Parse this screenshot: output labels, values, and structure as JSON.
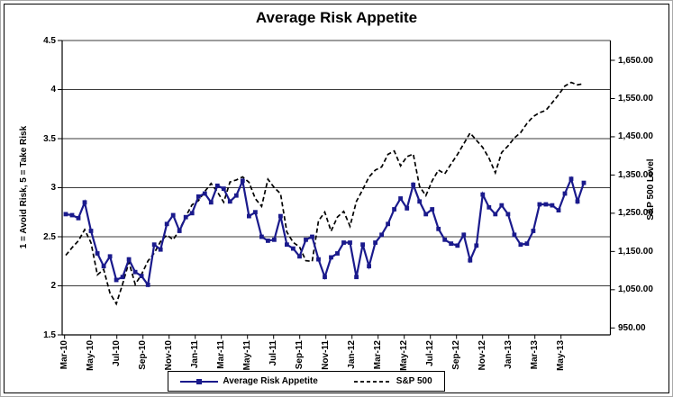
{
  "chart": {
    "title": "Average Risk Appetite",
    "left_axis": {
      "title": "1 = Avoid Risk, 5 = Take Risk",
      "tick_labels": [
        "4.5",
        "4",
        "3.5",
        "3",
        "2.5",
        "2",
        "1.5"
      ],
      "min": 1.5,
      "max": 4.5
    },
    "right_axis": {
      "title": "S&P 500 Level",
      "tick_labels": [
        "1,650.00",
        "1,550.00",
        "1,450.00",
        "1,350.00",
        "1,250.00",
        "1,150.00",
        "1,050.00",
        "950.00"
      ],
      "min": 950,
      "max": 1650
    }
  },
  "chart_data": {
    "type": "line",
    "x_tick_labels": [
      "Mar-10",
      "May-10",
      "Jul-10",
      "Sep-10",
      "Nov-10",
      "Jan-11",
      "Mar-11",
      "May-11",
      "Jul-11",
      "Sep-11",
      "Nov-11",
      "Jan-12",
      "Mar-12",
      "May-12",
      "Jul-12",
      "Sep-12",
      "Nov-12",
      "Jan-13",
      "Mar-13",
      "May-13"
    ],
    "x_frequency": "semi-monthly, Mar-2010 through Jun-2013",
    "left_ylim": [
      1.5,
      4.5
    ],
    "right_ylim": [
      950,
      1650
    ],
    "grid": "horizontal gridlines every 0.5",
    "legend_position": "bottom-center boxed",
    "series": [
      {
        "name": "Average Risk  Appetite",
        "axis": "left",
        "style": "solid",
        "marker": "square",
        "color": "#1a1a8c",
        "values": [
          2.73,
          2.72,
          2.69,
          2.85,
          2.56,
          2.33,
          2.2,
          2.3,
          2.06,
          2.09,
          2.27,
          2.14,
          2.1,
          2.01,
          2.42,
          2.37,
          2.63,
          2.72,
          2.56,
          2.7,
          2.74,
          2.91,
          2.94,
          2.85,
          3.02,
          2.99,
          2.86,
          2.92,
          3.07,
          2.71,
          2.75,
          2.5,
          2.46,
          2.47,
          2.71,
          2.42,
          2.38,
          2.3,
          2.47,
          2.5,
          2.27,
          2.09,
          2.29,
          2.33,
          2.44,
          2.44,
          2.09,
          2.42,
          2.2,
          2.44,
          2.52,
          2.63,
          2.78,
          2.89,
          2.79,
          3.03,
          2.86,
          2.73,
          2.78,
          2.58,
          2.47,
          2.43,
          2.41,
          2.52,
          2.26,
          2.41,
          2.93,
          2.8,
          2.73,
          2.82,
          2.73,
          2.52,
          2.42,
          2.43,
          2.56,
          2.83,
          2.83,
          2.82,
          2.77,
          2.94,
          3.09,
          2.86,
          3.05
        ]
      },
      {
        "name": "S&P 500",
        "axis": "right",
        "style": "dashed",
        "marker": "none",
        "color": "#000000",
        "values": [
          1140,
          1160,
          1178,
          1207,
          1173,
          1089,
          1103,
          1041,
          1013,
          1065,
          1122,
          1064,
          1090,
          1125,
          1146,
          1176,
          1193,
          1181,
          1206,
          1242,
          1272,
          1283,
          1307,
          1328,
          1306,
          1279,
          1332,
          1337,
          1345,
          1331,
          1288,
          1268,
          1339,
          1317,
          1301,
          1201,
          1174,
          1162,
          1126,
          1124,
          1230,
          1253,
          1203,
          1240,
          1255,
          1216,
          1281,
          1312,
          1345,
          1363,
          1371,
          1404,
          1413,
          1374,
          1398,
          1405,
          1320,
          1296,
          1335,
          1363,
          1353,
          1379,
          1404,
          1432,
          1460,
          1441,
          1422,
          1394,
          1356,
          1409,
          1426,
          1447,
          1461,
          1485,
          1503,
          1513,
          1519,
          1539,
          1560,
          1583,
          1592,
          1586,
          1589
        ]
      }
    ]
  }
}
